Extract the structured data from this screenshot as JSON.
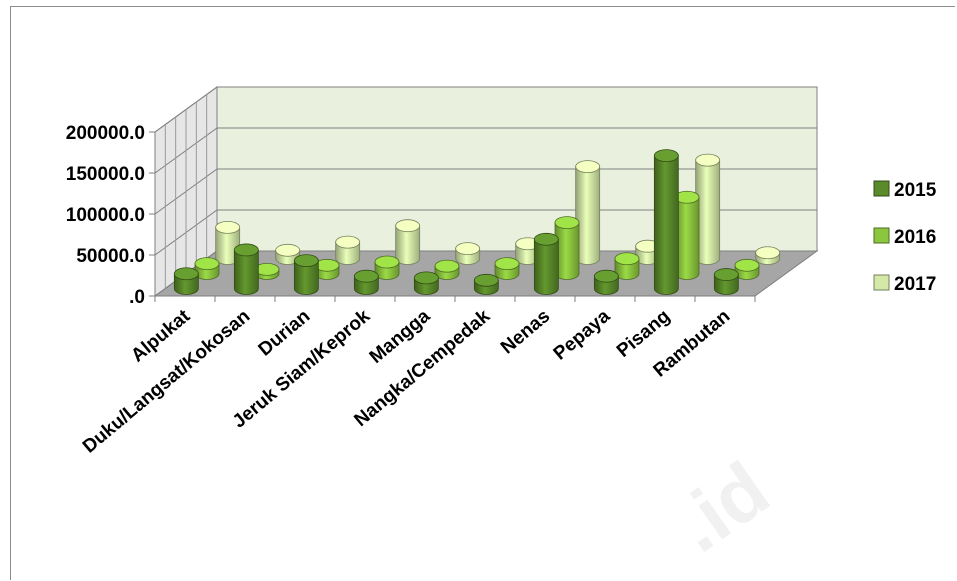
{
  "chart_data": {
    "type": "bar",
    "view": "3d-column",
    "title": "",
    "xlabel": "",
    "ylabel": "",
    "ylim": [
      0,
      200000
    ],
    "y_ticks": [
      ".0",
      "50000.0",
      "100000.0",
      "150000.0",
      "200000.0"
    ],
    "y_tick_values": [
      0,
      50000,
      100000,
      150000,
      200000
    ],
    "grid": true,
    "legend_position": "right",
    "categories": [
      "Alpukat",
      "Duku/Langsat/Kokosan",
      "Durian",
      "Jeruk Siam/Keprok",
      "Mangga",
      "Nangka/Cempedak",
      "Nenas",
      "Pepaya",
      "Pisang",
      "Rambutan"
    ],
    "series": [
      {
        "name": "2015",
        "color": "#5a8a2a",
        "values": [
          18000,
          47000,
          34000,
          15000,
          13000,
          10000,
          60000,
          15000,
          162000,
          17000
        ]
      },
      {
        "name": "2016",
        "color": "#8cc63f",
        "values": [
          12000,
          5000,
          10000,
          14000,
          9000,
          12000,
          62000,
          18000,
          93000,
          10000
        ]
      },
      {
        "name": "2017",
        "color": "#d4e8a8",
        "values": [
          38000,
          10000,
          20000,
          40000,
          12000,
          18000,
          112000,
          15000,
          120000,
          7000
        ]
      }
    ]
  },
  "watermark": {
    "text": ".id",
    "color": "#f1f1f1"
  }
}
